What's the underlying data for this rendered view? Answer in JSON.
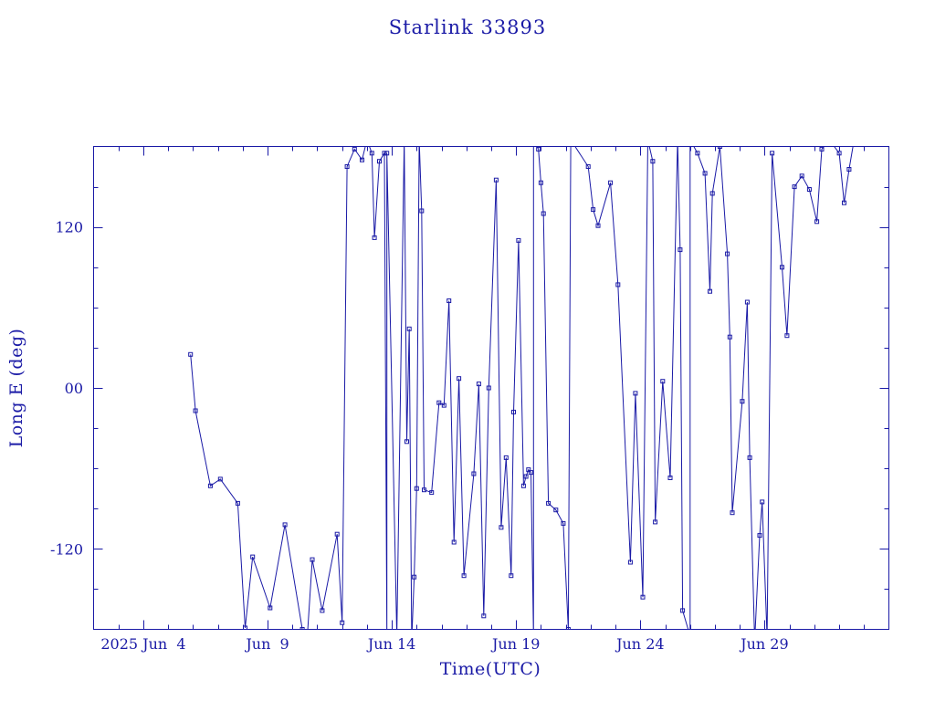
{
  "colors": {
    "ink": "#1a1aa6",
    "background": "#ffffff"
  },
  "chart_data": {
    "type": "line",
    "title": "Starlink 33893",
    "xlabel": "Time(UTC)",
    "ylabel": "Long E (deg)",
    "xlim": [
      0,
      32
    ],
    "ylim": [
      -180,
      180
    ],
    "grid": false,
    "markers": "open squares",
    "x_ticks": [
      {
        "value": 2,
        "label": "2025 Jun  4"
      },
      {
        "value": 7,
        "label": "Jun  9"
      },
      {
        "value": 12,
        "label": "Jun 14"
      },
      {
        "value": 17,
        "label": "Jun 19"
      },
      {
        "value": 22,
        "label": "Jun 24"
      },
      {
        "value": 27,
        "label": "Jun 29"
      }
    ],
    "y_ticks": [
      {
        "value": 120,
        "label": "120"
      },
      {
        "value": 0,
        "label": "00"
      },
      {
        "value": -120,
        "label": "-120"
      }
    ],
    "x_unit": "days since 2025 Jun 2 00:00 UTC",
    "series": [
      {
        "points": [
          [
            3.9,
            25
          ],
          [
            4.1,
            -17
          ],
          [
            4.7,
            -73
          ],
          [
            5.1,
            -68
          ],
          [
            5.8,
            -86
          ],
          [
            6.1,
            -179
          ],
          [
            6.4,
            -126
          ],
          [
            7.1,
            -164
          ],
          [
            7.7,
            -102
          ],
          [
            8.4,
            -180
          ],
          [
            8.6,
            -185
          ],
          [
            8.8,
            -128
          ],
          [
            9.2,
            -166
          ],
          [
            9.8,
            -109
          ],
          [
            10.0,
            -175
          ],
          [
            10.2,
            165
          ],
          [
            10.5,
            178
          ],
          [
            10.8,
            170
          ],
          [
            11.0,
            185
          ],
          [
            11.2,
            175
          ],
          [
            11.3,
            112
          ],
          [
            11.5,
            169
          ],
          [
            11.7,
            175
          ],
          [
            11.8,
            -185
          ],
          [
            11.8,
            175
          ],
          [
            12.2,
            -185
          ],
          [
            12.5,
            185
          ],
          [
            12.6,
            -40
          ],
          [
            12.7,
            44
          ],
          [
            12.8,
            -188
          ],
          [
            12.9,
            -141
          ],
          [
            13.0,
            -75
          ],
          [
            13.1,
            185
          ],
          [
            13.2,
            132
          ],
          [
            13.3,
            -76
          ],
          [
            13.6,
            -78
          ],
          [
            13.9,
            -11
          ],
          [
            14.1,
            -13
          ],
          [
            14.3,
            65
          ],
          [
            14.5,
            -115
          ],
          [
            14.7,
            7
          ],
          [
            14.9,
            -140
          ],
          [
            15.3,
            -64
          ],
          [
            15.5,
            3
          ],
          [
            15.7,
            -170
          ],
          [
            15.9,
            0
          ],
          [
            16.2,
            155
          ],
          [
            16.4,
            -104
          ],
          [
            16.6,
            -52
          ],
          [
            16.8,
            -140
          ],
          [
            16.9,
            -18
          ],
          [
            17.1,
            110
          ],
          [
            17.3,
            -73
          ],
          [
            17.4,
            -66
          ],
          [
            17.5,
            -61
          ],
          [
            17.6,
            -63
          ],
          [
            17.7,
            -185
          ],
          [
            17.7,
            185
          ],
          [
            17.9,
            178
          ],
          [
            18.0,
            153
          ],
          [
            18.1,
            130
          ],
          [
            18.3,
            -86
          ],
          [
            18.6,
            -91
          ],
          [
            18.9,
            -101
          ],
          [
            19.1,
            -180
          ],
          [
            19.2,
            185
          ],
          [
            19.9,
            165
          ],
          [
            20.1,
            133
          ],
          [
            20.3,
            121
          ],
          [
            20.8,
            153
          ],
          [
            21.1,
            77
          ],
          [
            21.6,
            -130
          ],
          [
            21.8,
            -4
          ],
          [
            22.1,
            -156
          ],
          [
            22.3,
            185
          ],
          [
            22.5,
            169
          ],
          [
            22.6,
            -100
          ],
          [
            22.9,
            5
          ],
          [
            23.2,
            -67
          ],
          [
            23.5,
            185
          ],
          [
            23.6,
            103
          ],
          [
            23.7,
            -166
          ],
          [
            24.0,
            -185
          ],
          [
            24.0,
            185
          ],
          [
            24.3,
            175
          ],
          [
            24.6,
            160
          ],
          [
            24.8,
            72
          ],
          [
            24.9,
            145
          ],
          [
            25.2,
            180
          ],
          [
            25.5,
            100
          ],
          [
            25.6,
            38
          ],
          [
            25.7,
            -93
          ],
          [
            26.1,
            -10
          ],
          [
            26.3,
            64
          ],
          [
            26.4,
            -52
          ],
          [
            26.6,
            -189
          ],
          [
            26.8,
            -110
          ],
          [
            26.9,
            -85
          ],
          [
            27.1,
            -186
          ],
          [
            27.3,
            175
          ],
          [
            27.7,
            90
          ],
          [
            27.9,
            39
          ],
          [
            28.2,
            150
          ],
          [
            28.5,
            158
          ],
          [
            28.8,
            148
          ],
          [
            29.1,
            124
          ],
          [
            29.3,
            178
          ],
          [
            29.6,
            185
          ],
          [
            30.0,
            175
          ],
          [
            30.2,
            138
          ],
          [
            30.4,
            163
          ],
          [
            30.6,
            185
          ]
        ]
      }
    ]
  }
}
